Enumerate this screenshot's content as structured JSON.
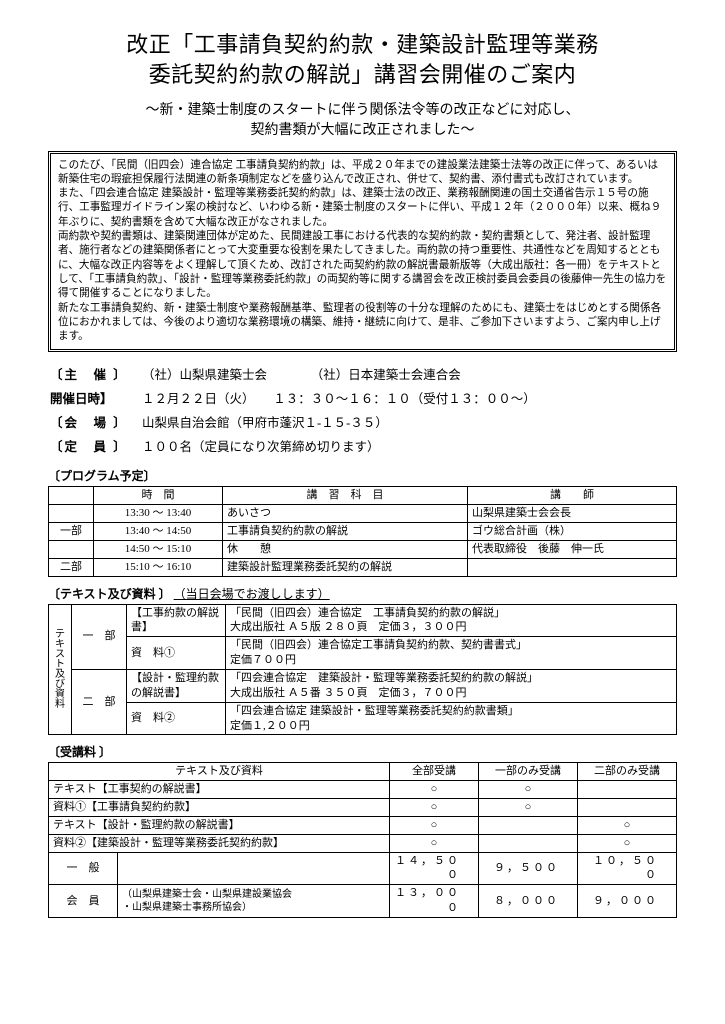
{
  "title_line1": "改正「工事請負契約約款・建築設計監理等業務",
  "title_line2": "委託契約約款の解説」講習会開催のご案内",
  "subtitle_line1": "～新・建築士制度のスタートに伴う関係法令等の改正などに対応し、",
  "subtitle_line2": "契約書類が大幅に改正されました～",
  "intro": "このたび、「民間（旧四会）連合協定 工事請負契約約款」は、平成２０年までの建設業法建築士法等の改正に伴って、あるいは新築住宅の瑕疵担保履行法関連の新条項制定などを盛り込んで改正され、併せて、契約書、添付書式も改訂されています。\nまた、「四会連合協定 建築設計・監理等業務委託契約約款」は、建築士法の改正、業務報酬関連の国土交通省告示１５号の施行、工事監理ガイドライン案の検討など、いわゆる新・建築士制度のスタートに伴い、平成１２年（２０００年）以来、概ね９年ぶりに、契約書類を含めて大幅な改正がなされました。\n両約款や契約書類は、建築関連団体が定めた、民間建設工事における代表的な契約約款・契約書類として、発注者、設計監理者、施行者などの建築関係者にとって大変重要な役割を果たしてきました。両約款の持つ重要性、共通性などを周知するとともに、大幅な改正内容等をよく理解して頂くため、改訂された両契約約款の解説書最新版等（大成出版社：各一冊）をテキストとして、「工事請負約款」、「設計・監理等業務委託約款」の両契約等に関する講習会を改正検討委員会委員の後藤伸一先生の協力を得て開催することになりました。\n新たな工事請負契約、新・建築士制度や業務報酬基準、監理者の役割等の十分な理解のためにも、建築士をはじめとする関係各位におかれましては、今後のより適切な業務環境の構築、維持・継続に向けて、是非、ご参加下さいますよう、ご案内申し上げます。",
  "info": {
    "host_label": "〔主　催 〕",
    "host_val": "（社）山梨県建築士会　　　　（社）日本建築士会連合会",
    "date_label": "開催日時】",
    "date_val": "１２月２２日（火）　　１３：３０～１６：１０（受付１３：００～）",
    "venue_label": "〔会　場 〕",
    "venue_val": "山梨県自治会館（甲府市蓬沢１‐１５‐３５）",
    "cap_label": "〔定　員 〕",
    "cap_val": "１００名（定員になり次第締め切ります）"
  },
  "program_label": "〔プログラム予定〕",
  "program_headers": {
    "time": "時　間",
    "subj": "講　習　科　目",
    "lect": "講　　師"
  },
  "program": [
    {
      "sec": "",
      "time": "13:30 ～ 13:40",
      "subj": "あいさつ",
      "lect": "山梨県建築士会会長"
    },
    {
      "sec": "一部",
      "time": "13:40 ～ 14:50",
      "subj": "工事請負契約約款の解説",
      "lect": "ゴウ総合計画（株）"
    },
    {
      "sec": "",
      "time": "14:50 ～ 15:10",
      "subj": "休　　憩",
      "lect": "代表取締役　後藤　伸一氏"
    },
    {
      "sec": "二部",
      "time": "15:10 ～ 16:10",
      "subj": "建築設計監理業務委託契約の解説",
      "lect": ""
    }
  ],
  "text_label": "〔テキスト及び資料 〕",
  "text_note": "（当日会場でお渡しします）",
  "text_side": "テキスト及び資料",
  "text_rows": [
    {
      "cat": "一　部",
      "kind": "【工事約款の解説書】",
      "desc": "「民間（旧四会）連合協定　工事請負契約約款の解説」\n大成出版社 Ａ５版 ２８０頁　定価３，３００円"
    },
    {
      "cat": "",
      "kind": "資　料①",
      "desc": "「民間（旧四会）連合協定工事請負契約約款、契約書書式」\n定価７００円"
    },
    {
      "cat": "二　部",
      "kind": "【設計・監理約款の解説書】",
      "desc": "「四会連合協定　建築設計・監理等業務委託契約約款の解説」\n大成出版社 Ａ５番 ３５０頁　定価３，７００円"
    },
    {
      "cat": "",
      "kind": "資　料②",
      "desc": "「四会連合協定 建築設計・監理等業務委託契約約款書類」\n定価１,２００円"
    }
  ],
  "fee_label": "〔受講料 〕",
  "fee_headers": {
    "item": "テキスト及び資料",
    "all": "全部受講",
    "p1": "一部のみ受講",
    "p2": "二部のみ受講"
  },
  "fee_items": [
    {
      "lbl": "テキスト【工事契約の解説書】",
      "all": "○",
      "p1": "○",
      "p2": ""
    },
    {
      "lbl": "資料①【工事請負契約約款】",
      "all": "○",
      "p1": "○",
      "p2": ""
    },
    {
      "lbl": "テキスト【設計・監理約款の解説書】",
      "all": "○",
      "p1": "",
      "p2": "○"
    },
    {
      "lbl": "資料②【建築設計・監理等業務委託契約約款】",
      "all": "○",
      "p1": "",
      "p2": "○"
    }
  ],
  "fee_prices": [
    {
      "lbl": "一　般",
      "sub": "",
      "all": "１４，５００",
      "p1": "９，５００",
      "p2": "１０，５００"
    },
    {
      "lbl": "会　員",
      "sub": "（山梨県建築士会・山梨県建設業協会\n・山梨県建築士事務所協会）",
      "all": "１３，０００",
      "p1": "８，０００",
      "p2": "９，０００"
    }
  ]
}
